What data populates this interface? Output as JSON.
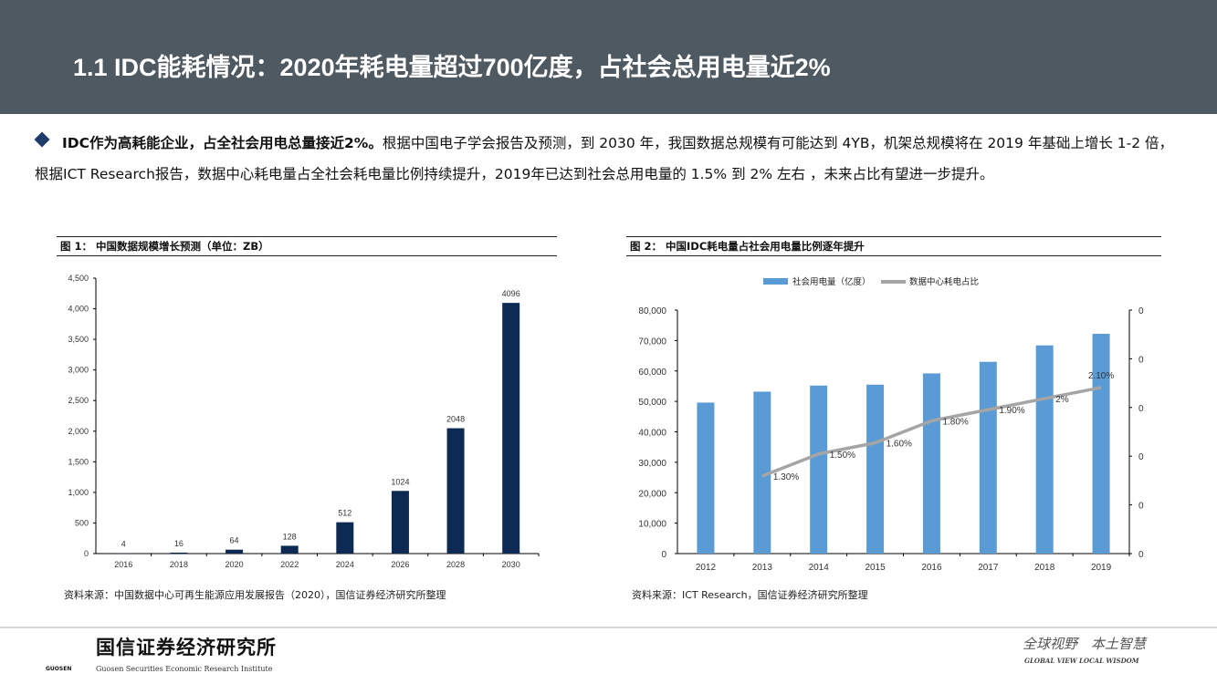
{
  "header": {
    "title": "1.1 IDC能耗情况：2020年耗电量超过700亿度，占社会总用电量近2%"
  },
  "bullet": {
    "lead": "IDC作为高耗能企业，占全社会用电总量接近2%。",
    "text": "根据中国电子学会报告及预测，到 2030 年，我国数据总规模有可能达到 4YB，机架总规模将在 2019 年基础上增长 1-2 倍，根据ICT Research报告，数据中心耗电量占全社会耗电量比例持续提升，2019年已达到社会总用电量的 1.5% 到 2% 左右 ，未来占比有望进一步提升。"
  },
  "figures": [
    {
      "title": "图 1：  中国数据规模增长预测（单位：ZB）",
      "source": "资料来源：中国数据中心可再生能源应用发展报告（2020），国信证券经济研究所整理"
    },
    {
      "title": "图 2：  中国IDC耗电量占社会用电量比例逐年提升",
      "source": "资料来源：ICT Research，国信证券经济研究所整理"
    }
  ],
  "chart_data": [
    {
      "type": "bar",
      "categories": [
        "2016",
        "2018",
        "2020",
        "2022",
        "2024",
        "2026",
        "2028",
        "2030"
      ],
      "values": [
        4,
        16,
        64,
        128,
        512,
        1024,
        2048,
        4096
      ],
      "ylim": [
        0,
        4500
      ],
      "yticks": [
        "0",
        "500",
        "1,000",
        "1,500",
        "2,000",
        "2,500",
        "3,000",
        "3,500",
        "4,000",
        "4,500"
      ],
      "bar_color": "#0d2a52",
      "grid": false
    },
    {
      "type": "bar+line",
      "categories": [
        "2012",
        "2013",
        "2014",
        "2015",
        "2016",
        "2017",
        "2018",
        "2019"
      ],
      "series": [
        {
          "name": "社会用电量（亿度）",
          "type": "bar",
          "axis": "left",
          "values": [
            49600,
            53200,
            55200,
            55500,
            59200,
            63000,
            68400,
            72200
          ],
          "color": "#5b9bd5"
        },
        {
          "name": "数据中心耗电占比",
          "type": "line",
          "axis": "right",
          "values": [
            null,
            1.3,
            1.5,
            1.6,
            1.8,
            1.9,
            2.0,
            2.1
          ],
          "labels": [
            null,
            "1.30%",
            "1.50%",
            "1.60%",
            "1.80%",
            "1.90%",
            "2%",
            "2.10%"
          ],
          "color": "#a5a5a5"
        }
      ],
      "ylim": [
        0,
        80000
      ],
      "yticks": [
        "0",
        "10,000",
        "20,000",
        "30,000",
        "40,000",
        "50,000",
        "60,000",
        "70,000",
        "80,000"
      ],
      "y2ticks": [
        "0",
        "0",
        "0",
        "0",
        "0",
        "0"
      ],
      "legend": "top",
      "grid": false
    }
  ],
  "footer": {
    "logo_cn": "国信证券经济研究所",
    "logo_en": "Guosen Securities Economic Research Institute",
    "logo_small": "GUOSEN",
    "slogan_cn": "全球视野　本土智慧",
    "slogan_en": "GLOBAL VIEW   LOCAL WISDOM"
  }
}
